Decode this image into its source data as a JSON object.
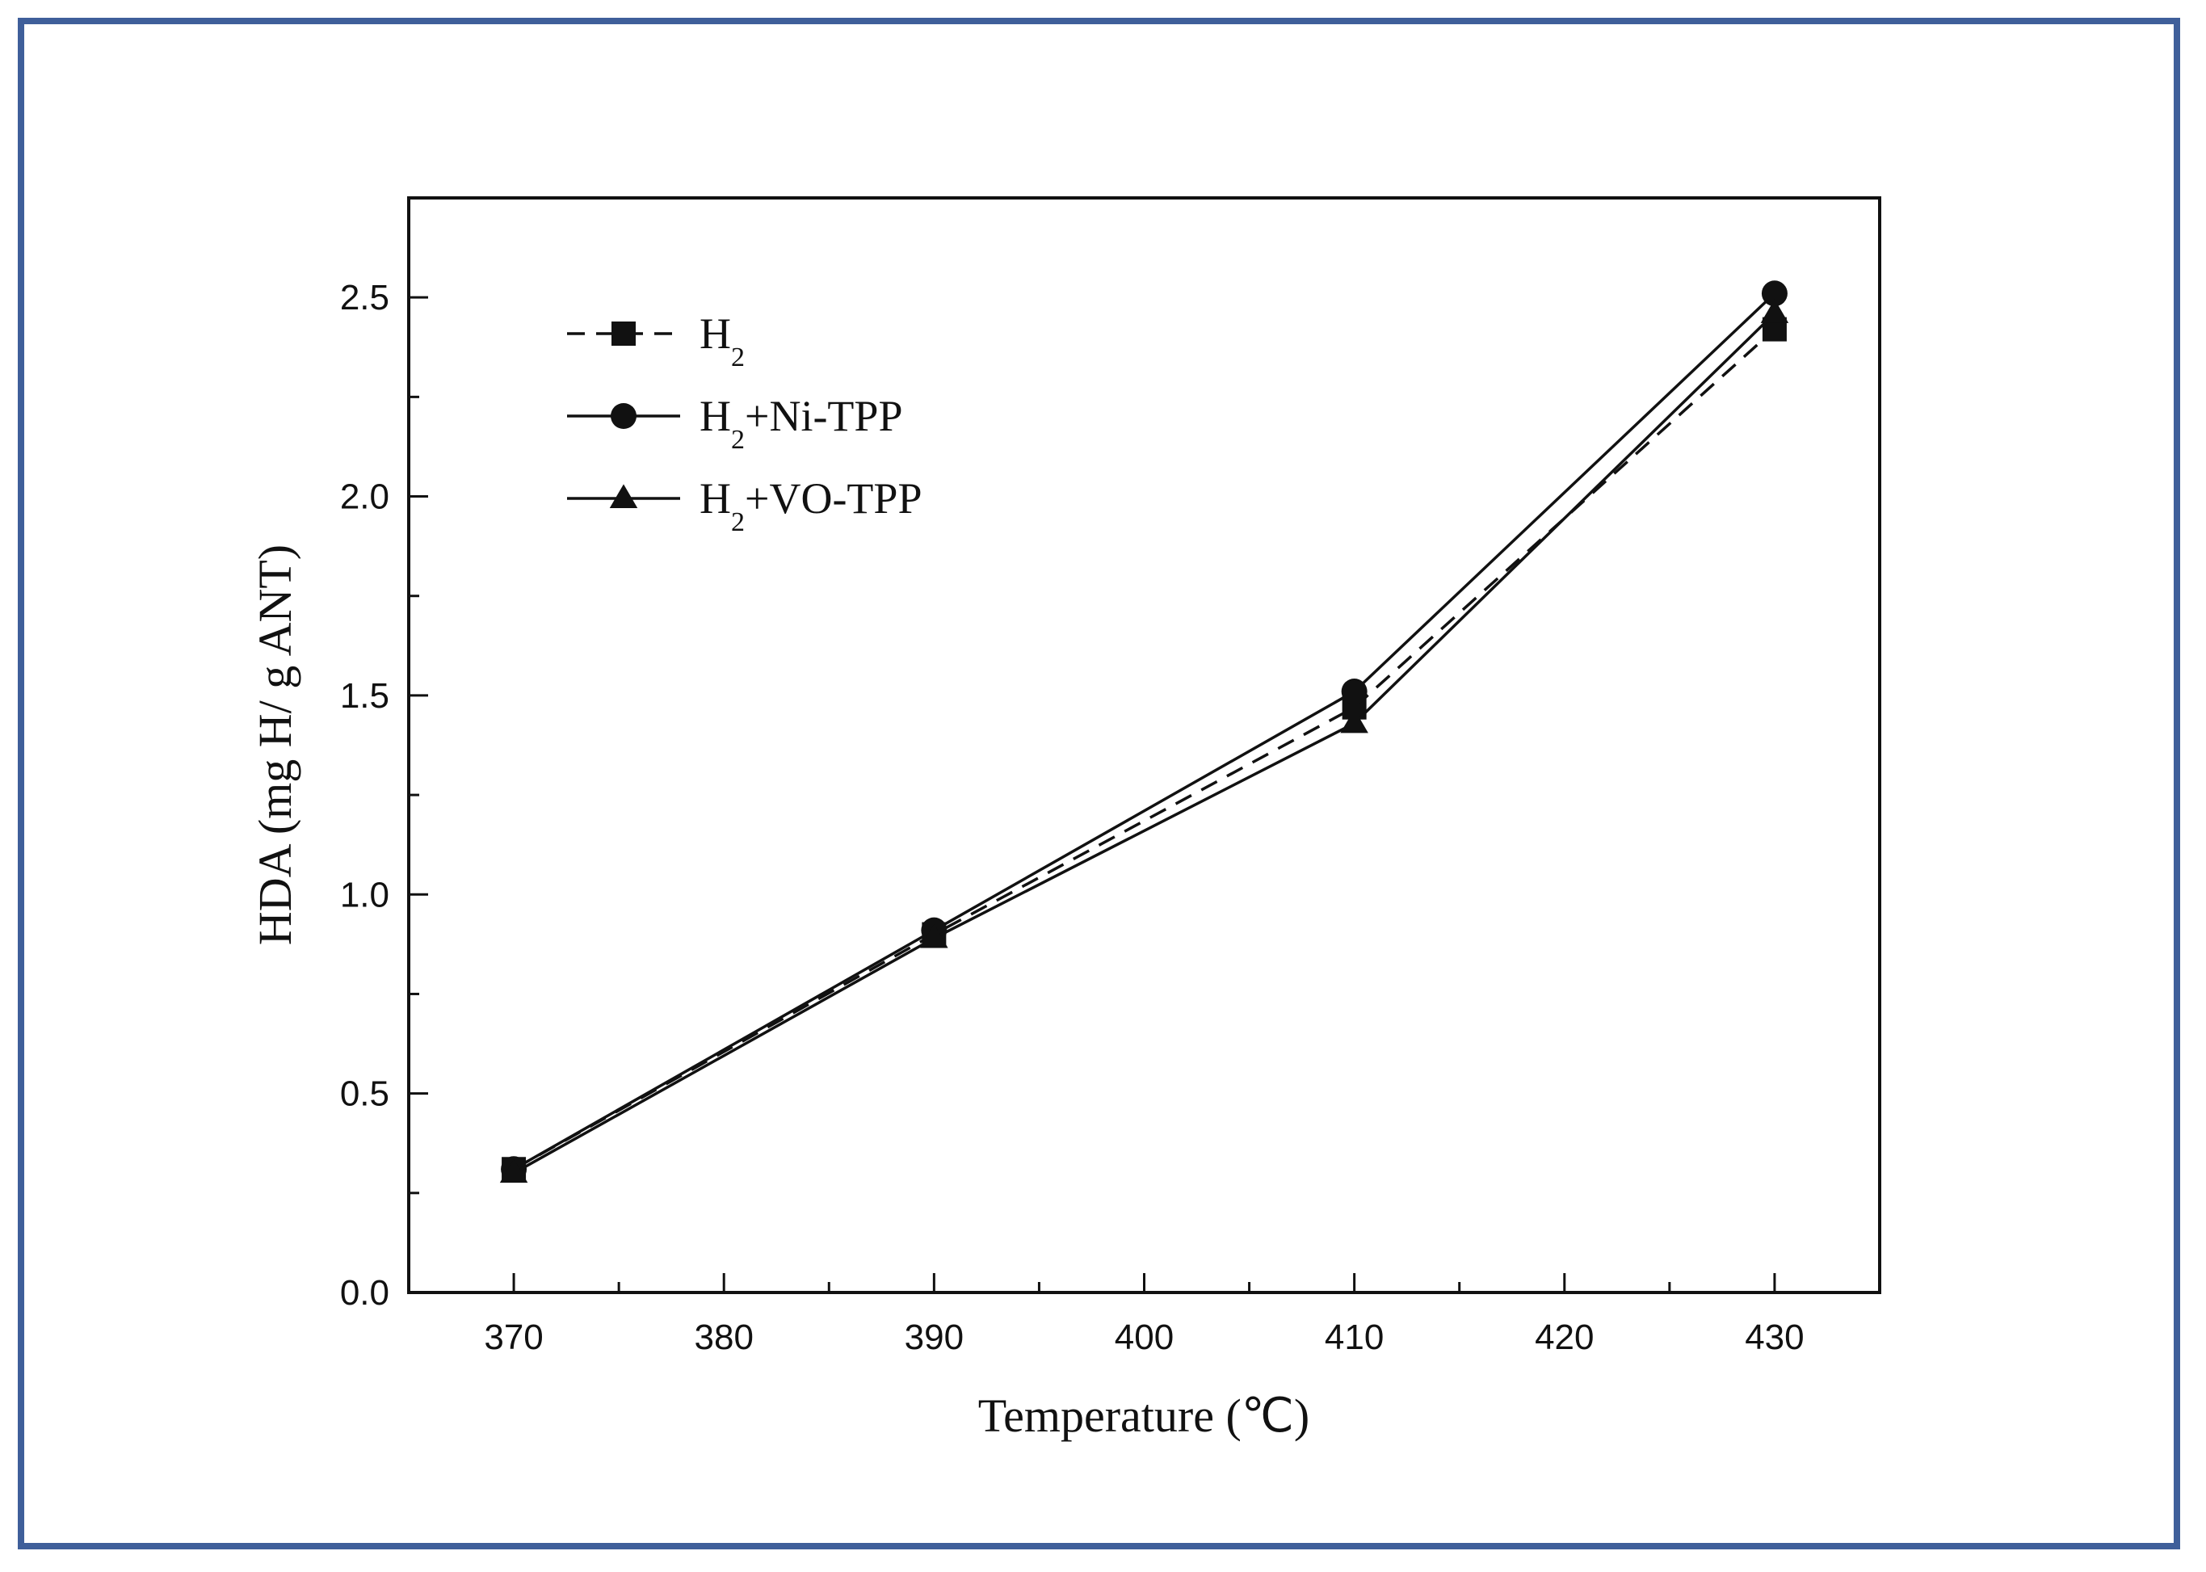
{
  "chart_data": {
    "type": "line",
    "title": "",
    "xlabel": "Temperature (℃)",
    "ylabel": "HDA (mg H/ g ANT)",
    "x": [
      370,
      390,
      410,
      430
    ],
    "xlim": [
      365,
      435
    ],
    "ylim": [
      0,
      2.75
    ],
    "xticks": [
      370,
      380,
      390,
      400,
      410,
      420,
      430
    ],
    "xtick_labels": [
      "370",
      "380",
      "390",
      "400",
      "410",
      "420",
      "430"
    ],
    "yticks": [
      0,
      0.5,
      1.0,
      1.5,
      2.0,
      2.5
    ],
    "ytick_labels": [
      "0.0",
      "0.5",
      "1.0",
      "1.5",
      "2.0",
      "2.5"
    ],
    "grid": false,
    "legend_position": "top-left",
    "series": [
      {
        "name": "H2",
        "label_main": "H",
        "label_sub": "2",
        "label_rest": "",
        "values": [
          0.31,
          0.9,
          1.47,
          2.42
        ],
        "marker": "square",
        "line": "dashed"
      },
      {
        "name": "H2+Ni-TPP",
        "label_main": "H",
        "label_sub": "2",
        "label_rest": "+Ni-TPP",
        "values": [
          0.31,
          0.91,
          1.51,
          2.51
        ],
        "marker": "circle",
        "line": "solid"
      },
      {
        "name": "H2+VO-TPP",
        "label_main": "H",
        "label_sub": "2",
        "label_rest": "+VO-TPP",
        "values": [
          0.3,
          0.89,
          1.43,
          2.46
        ],
        "marker": "triangle",
        "line": "solid"
      }
    ]
  },
  "colors": {
    "frame_border": "#3f5f9a",
    "ink": "#111111"
  }
}
